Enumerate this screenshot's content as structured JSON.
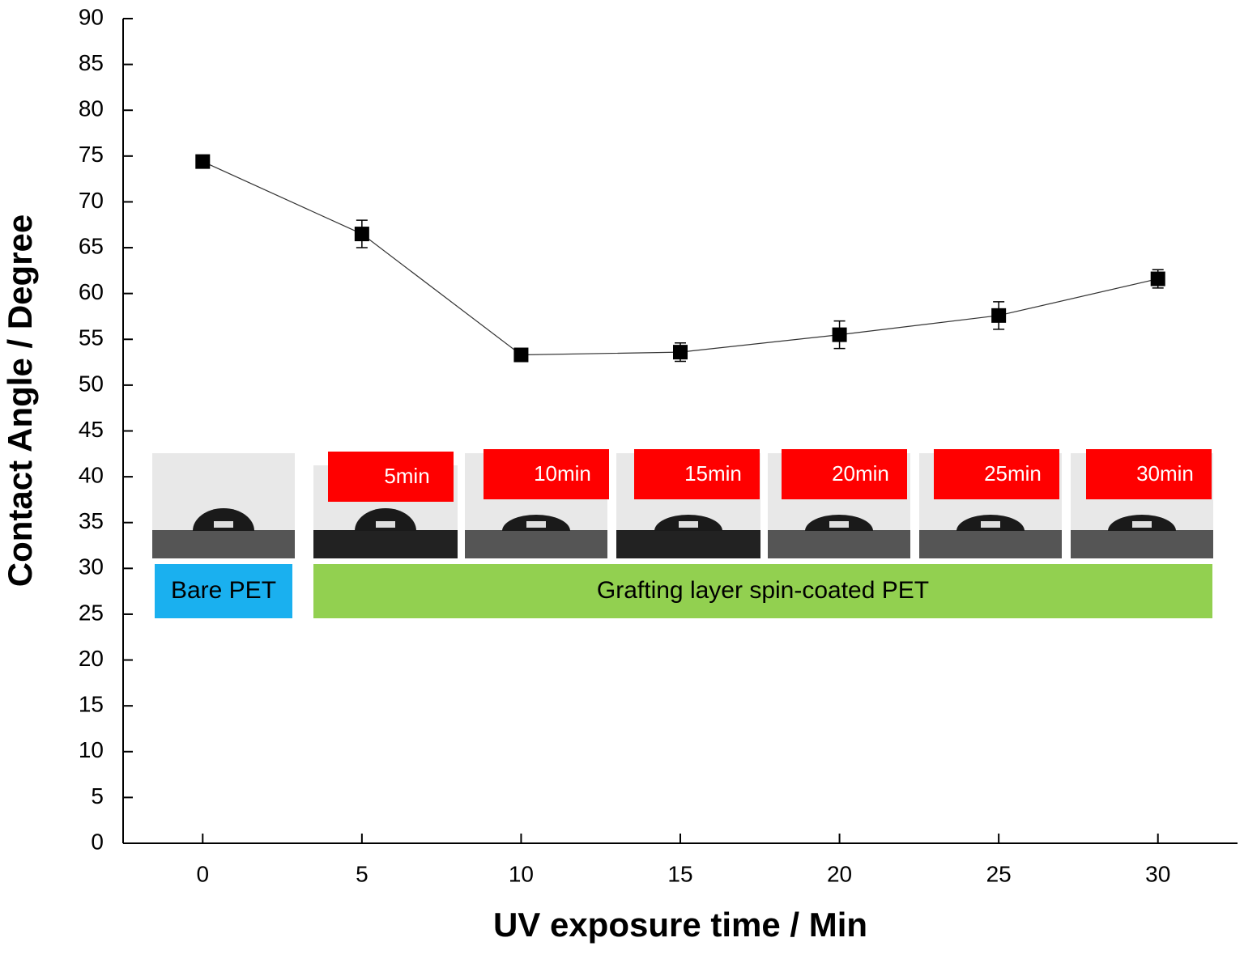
{
  "chart_data": {
    "type": "line",
    "xlabel": "UV exposure time / Min",
    "ylabel": "Contact Angle / Degree",
    "x": [
      0,
      5,
      10,
      15,
      20,
      25,
      30
    ],
    "series": [
      {
        "color": "#000000",
        "values": [
          74.4,
          66.5,
          53.3,
          53.6,
          55.5,
          57.6,
          61.6
        ],
        "errors": [
          0.4,
          1.5,
          0.5,
          1.0,
          1.5,
          1.5,
          1.0
        ]
      }
    ],
    "xlim": [
      -2.5,
      32.5
    ],
    "ylim": [
      0,
      90
    ],
    "xticks": [
      0,
      5,
      10,
      15,
      20,
      25,
      30
    ],
    "yticks": [
      0,
      5,
      10,
      15,
      20,
      25,
      30,
      35,
      40,
      45,
      50,
      55,
      60,
      65,
      70,
      75,
      80,
      85,
      90
    ],
    "annotations": {
      "substrates": [
        "Bare PET",
        "Grafting layer spin-coated PET"
      ],
      "times": [
        "5min",
        "10min",
        "15min",
        "20min",
        "25min",
        "30min"
      ]
    }
  }
}
